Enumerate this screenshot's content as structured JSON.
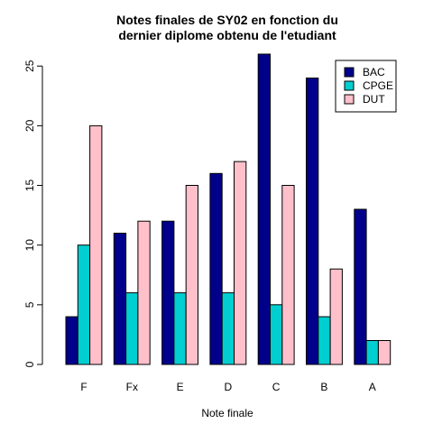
{
  "chart_data": {
    "type": "bar",
    "title_line1": "Notes finales de SY02 en fonction du",
    "title_line2": "dernier diplome obtenu de l'etudiant",
    "xlabel": "Note finale",
    "ylabel": "",
    "categories": [
      "F",
      "Fx",
      "E",
      "D",
      "C",
      "B",
      "A"
    ],
    "series": [
      {
        "name": "BAC",
        "color": "#00008B",
        "values": [
          4,
          11,
          12,
          16,
          26,
          24,
          13
        ]
      },
      {
        "name": "CPGE",
        "color": "#00CED1",
        "values": [
          10,
          6,
          6,
          6,
          5,
          4,
          2
        ]
      },
      {
        "name": "DUT",
        "color": "#FFC0CB",
        "values": [
          20,
          12,
          15,
          17,
          15,
          8,
          2
        ]
      }
    ],
    "ylim": [
      0,
      26
    ],
    "yticks": [
      "0",
      "5",
      "10",
      "15",
      "20",
      "25"
    ],
    "legend_position": "top-right",
    "grid": false
  }
}
